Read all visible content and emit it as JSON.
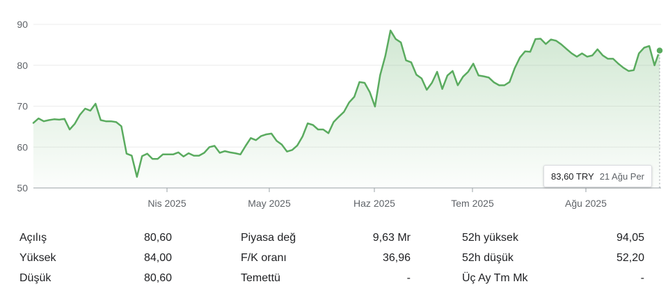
{
  "chart_data": {
    "type": "area",
    "currency": "TRY",
    "x_tick_labels": [
      "Nis 2025",
      "May 2025",
      "Haz 2025",
      "Tem 2025",
      "Ağu 2025"
    ],
    "y_ticks": [
      50,
      60,
      70,
      80,
      90
    ],
    "ylim": [
      50,
      90
    ],
    "grid": true,
    "color": "#5aab5f",
    "values": [
      65.9,
      67.0,
      66.3,
      66.6,
      66.8,
      66.7,
      66.9,
      64.3,
      65.7,
      67.9,
      69.4,
      68.9,
      70.6,
      66.6,
      66.3,
      66.3,
      66.1,
      65.1,
      58.4,
      57.9,
      52.7,
      57.8,
      58.4,
      57.1,
      57.1,
      58.2,
      58.2,
      58.2,
      58.7,
      57.7,
      58.5,
      57.9,
      57.9,
      58.6,
      60.0,
      60.3,
      58.6,
      59.0,
      58.7,
      58.5,
      58.2,
      60.3,
      62.2,
      61.7,
      62.7,
      63.1,
      63.3,
      61.5,
      60.6,
      58.9,
      59.3,
      60.4,
      62.6,
      65.8,
      65.4,
      64.3,
      64.3,
      63.4,
      66.1,
      67.4,
      68.6,
      70.9,
      72.3,
      75.9,
      75.7,
      73.4,
      69.9,
      77.6,
      82.3,
      88.5,
      86.4,
      85.6,
      81.2,
      80.7,
      77.7,
      76.8,
      74.0,
      75.7,
      78.4,
      74.2,
      77.5,
      78.6,
      75.1,
      77.2,
      78.4,
      80.4,
      77.5,
      77.3,
      77.0,
      75.8,
      75.1,
      75.1,
      75.9,
      79.3,
      81.9,
      83.4,
      83.3,
      86.4,
      86.5,
      85.2,
      86.3,
      86.0,
      85.1,
      84.0,
      82.9,
      82.1,
      82.9,
      82.1,
      82.4,
      83.9,
      82.4,
      81.6,
      81.6,
      80.4,
      79.4,
      78.6,
      78.8,
      82.9,
      84.3,
      84.7,
      80.0,
      83.6
    ],
    "last_value": 83.6
  },
  "tooltip": {
    "price": "83,60 TRY",
    "date": "21 Ağu Per"
  },
  "stats": {
    "open_label": "Açılış",
    "open_value": "80,60",
    "high_label": "Yüksek",
    "high_value": "84,00",
    "low_label": "Düşük",
    "low_value": "80,60",
    "mcap_label": "Piyasa değ",
    "mcap_value": "9,63 Mr",
    "pe_label": "F/K oranı",
    "pe_value": "36,96",
    "div_label": "Temettü",
    "div_value": "-",
    "high52_label": "52h yüksek",
    "high52_value": "94,05",
    "low52_label": "52h düşük",
    "low52_value": "52,20",
    "qdiv_label": "Üç Ay Tm Mk",
    "qdiv_value": "-"
  }
}
